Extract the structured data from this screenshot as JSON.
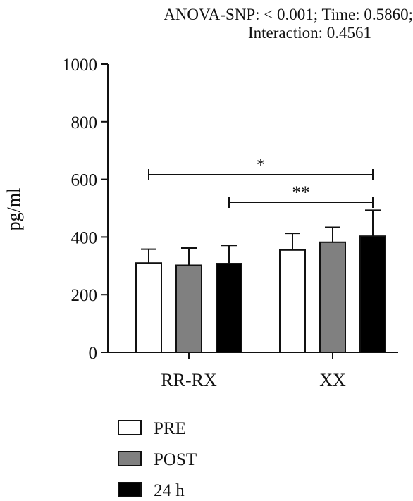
{
  "chart_data": {
    "type": "bar",
    "title_lines": [
      "ANOVA-SNP: < 0.001; Time: 0.5860;",
      "Interaction: 0.4561"
    ],
    "xlabel": "",
    "ylabel": "pg/ml",
    "ylim": [
      0,
      1000
    ],
    "yticks": [
      "0",
      "200",
      "400",
      "600",
      "800",
      "1000"
    ],
    "categories": [
      "RR-RX",
      "XX"
    ],
    "series": [
      {
        "name": "PRE",
        "color": "#ffffff",
        "values": [
          310,
          355
        ],
        "errors": [
          48,
          58
        ]
      },
      {
        "name": "POST",
        "color": "#808080",
        "values": [
          302,
          382
        ],
        "errors": [
          60,
          52
        ]
      },
      {
        "name": "24 h",
        "color": "#000000",
        "values": [
          308,
          403
        ],
        "errors": [
          63,
          90
        ]
      }
    ],
    "significance": [
      {
        "label": "*",
        "from": "RR-RX PRE",
        "to": "XX 24 h"
      },
      {
        "label": "**",
        "from": "RR-RX 24 h",
        "to": "XX 24 h"
      }
    ],
    "legend_position": "bottom-left",
    "grid": false
  }
}
